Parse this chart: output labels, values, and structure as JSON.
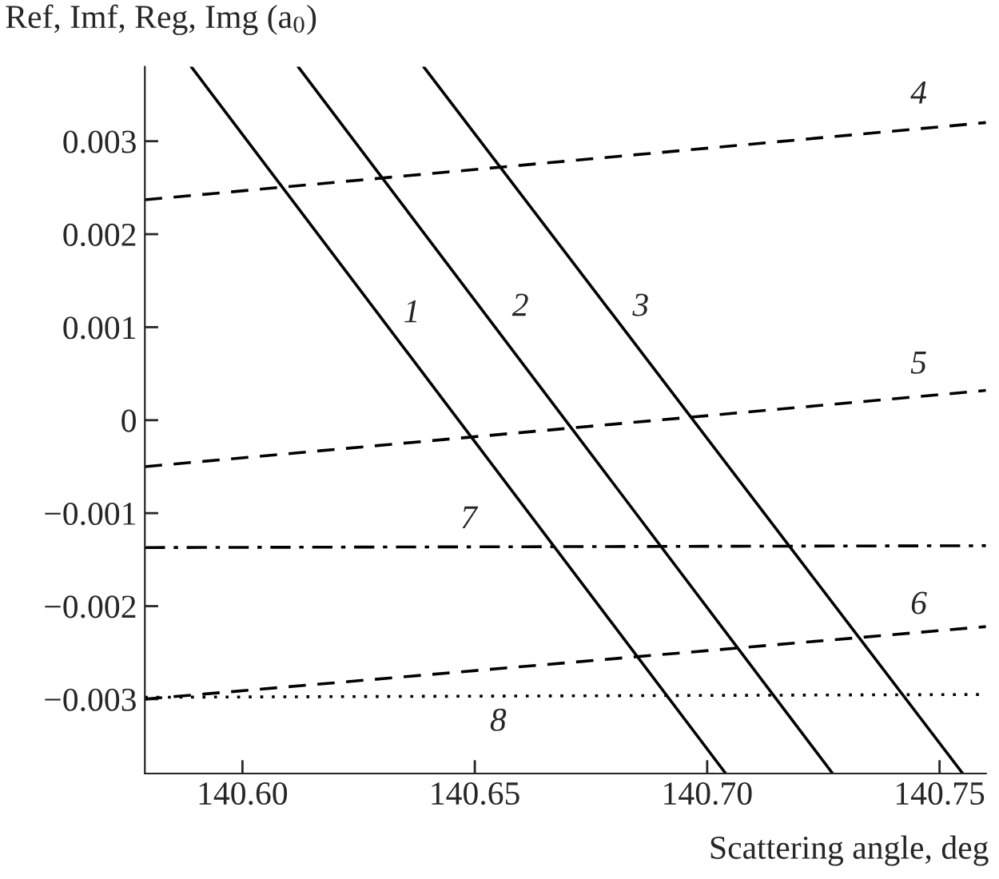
{
  "chart_data": {
    "type": "line",
    "ylabel": "Ref, Imf, Reg, Img (a$_{0}$)",
    "xlabel": "Scattering angle, deg",
    "xlim": [
      140.579,
      140.76
    ],
    "ylim": [
      -0.0038,
      0.0038
    ],
    "xticks": [
      {
        "value": 140.6,
        "label": "140.60"
      },
      {
        "value": 140.65,
        "label": "140.65"
      },
      {
        "value": 140.7,
        "label": "140.70"
      },
      {
        "value": 140.75,
        "label": "140.75"
      }
    ],
    "yticks": [
      {
        "value": -0.003,
        "label": "−0.003"
      },
      {
        "value": -0.002,
        "label": "−0.002"
      },
      {
        "value": -0.001,
        "label": "−0.001"
      },
      0,
      0.001,
      0.002,
      0.003
    ],
    "grid": false,
    "legend": false,
    "marker": "none",
    "series": [
      {
        "name": "1",
        "color": "#000000",
        "line_style": "solid",
        "x": [
          140.589,
          140.704
        ],
        "values": [
          0.0038,
          -0.0038
        ]
      },
      {
        "name": "2",
        "color": "#000000",
        "line_style": "solid",
        "x": [
          140.612,
          140.727
        ],
        "values": [
          0.0038,
          -0.0038
        ]
      },
      {
        "name": "3",
        "color": "#000000",
        "line_style": "solid",
        "x": [
          140.639,
          140.755
        ],
        "values": [
          0.0038,
          -0.0038
        ]
      },
      {
        "name": "4",
        "color": "#000000",
        "line_style": "dashed",
        "x": [
          140.579,
          140.76
        ],
        "values": [
          0.00237,
          0.0032
        ]
      },
      {
        "name": "5",
        "color": "#000000",
        "line_style": "dashed",
        "x": [
          140.579,
          140.76
        ],
        "values": [
          -0.0005,
          0.00032
        ]
      },
      {
        "name": "6",
        "color": "#000000",
        "line_style": "dashed",
        "x": [
          140.579,
          140.76
        ],
        "values": [
          -0.003,
          -0.00222
        ]
      },
      {
        "name": "7",
        "color": "#000000",
        "line_style": "dashdot",
        "x": [
          140.579,
          140.76
        ],
        "values": [
          -0.00137,
          -0.00135
        ]
      },
      {
        "name": "8",
        "color": "#000000",
        "line_style": "dotted",
        "x": [
          140.579,
          140.76
        ],
        "values": [
          -0.00298,
          -0.00295
        ]
      }
    ]
  }
}
